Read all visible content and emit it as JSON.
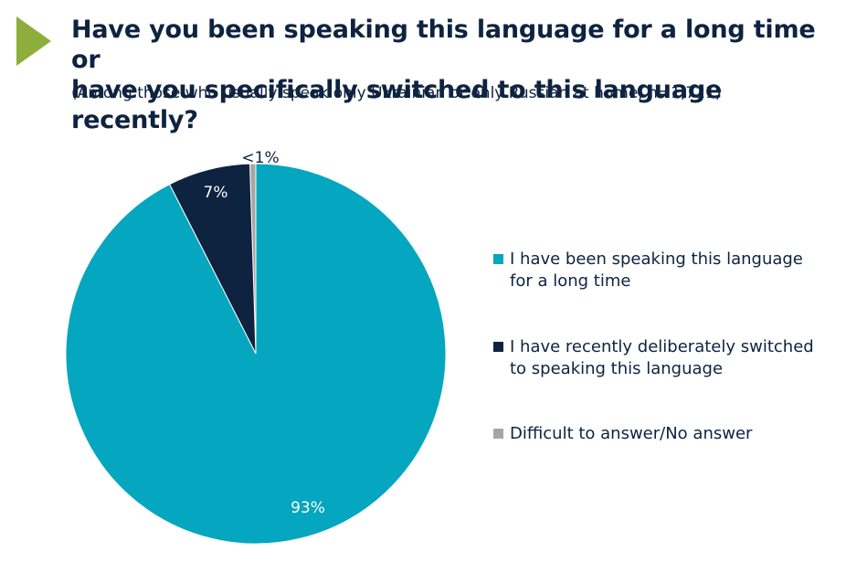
{
  "header": {
    "title_line1": "Have you been speaking this language for a long time or",
    "title_line2": "have you specifically switched to this language recently?",
    "subtitle": "(Among those who usually speak only Ukrainian or only Russian at home, n=1,721)"
  },
  "colors": {
    "accent_marker": "#8dae3c",
    "text": "#0e2340"
  },
  "chart_data": {
    "type": "pie",
    "slices": [
      {
        "name": "Difficult to answer/No answer",
        "value": 0.5,
        "label": "<1%",
        "color": "#a6a6a6"
      },
      {
        "name": "I have recently deliberately switched to speaking this language",
        "value": 7,
        "label": "7%",
        "color": "#0e2340"
      },
      {
        "name": "I have been speaking this language for a long time",
        "value": 92.5,
        "label": "93%",
        "color": "#05a6bf"
      }
    ],
    "legend": {
      "position": "right",
      "items": [
        {
          "line1": "I have been speaking this language",
          "line2": "for a long time",
          "color": "#05a6bf"
        },
        {
          "line1": "I have recently deliberately switched",
          "line2": "to speaking this language",
          "color": "#0e2340"
        },
        {
          "line1": "Difficult to answer/No answer",
          "line2": "",
          "color": "#a6a6a6"
        }
      ]
    }
  }
}
